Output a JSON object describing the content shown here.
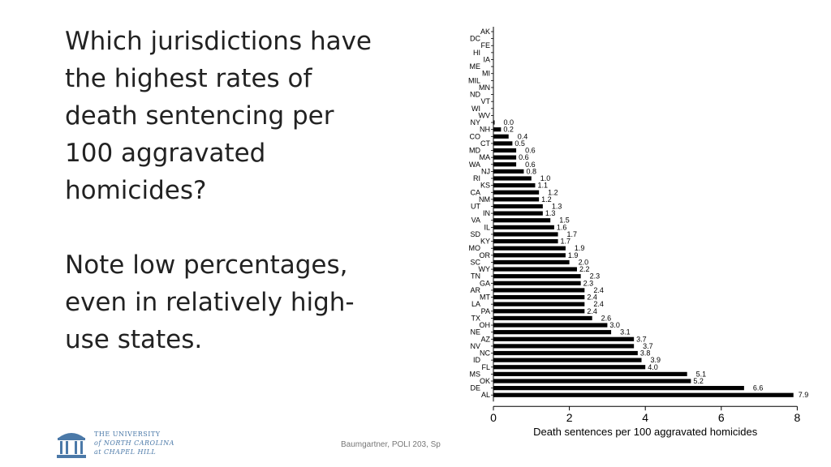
{
  "slide": {
    "question": "Which jurisdictions have the highest rates of death sentencing per 100 aggravated homicides?",
    "note": "Note low percentages, even in relatively high-use states."
  },
  "footer": {
    "text": "Baumgartner, POLI 203, Sp"
  },
  "logo": {
    "line1": "THE UNIVERSITY",
    "line2": "of NORTH CAROLINA",
    "line3": "at CHAPEL HILL"
  },
  "colors": {
    "bar": "#000000",
    "text": "#222222",
    "logo": "#4b79a8"
  },
  "chart_data": {
    "type": "bar",
    "orientation": "horizontal",
    "categories": [
      "AK",
      "DC",
      "FE",
      "HI",
      "IA",
      "ME",
      "MI",
      "MIL",
      "MN",
      "ND",
      "VT",
      "WI",
      "WV",
      "NY",
      "NH",
      "CO",
      "CT",
      "MD",
      "MA",
      "WA",
      "NJ",
      "RI",
      "KS",
      "CA",
      "NM",
      "UT",
      "IN",
      "VA",
      "IL",
      "SD",
      "KY",
      "MO",
      "OR",
      "SC",
      "WY",
      "TN",
      "GA",
      "AR",
      "MT",
      "LA",
      "PA",
      "TX",
      "OH",
      "NE",
      "AZ",
      "NV",
      "NC",
      "ID",
      "FL",
      "MS",
      "OK",
      "DE",
      "AL"
    ],
    "values": [
      null,
      null,
      null,
      null,
      null,
      null,
      null,
      null,
      null,
      null,
      null,
      null,
      null,
      0.0,
      0.2,
      0.4,
      0.5,
      0.6,
      0.6,
      0.6,
      0.8,
      1.0,
      1.1,
      1.2,
      1.2,
      1.3,
      1.3,
      1.5,
      1.6,
      1.7,
      1.7,
      1.9,
      1.9,
      2.0,
      2.2,
      2.3,
      2.3,
      2.4,
      2.4,
      2.4,
      2.4,
      2.6,
      3.0,
      3.1,
      3.7,
      3.7,
      3.8,
      3.9,
      4.0,
      5.1,
      5.2,
      6.6,
      7.9
    ],
    "value_labels": [
      "",
      "",
      "",
      "",
      "",
      "",
      "",
      "",
      "",
      "",
      "",
      "",
      "",
      "0.0",
      "0.2",
      "0.4",
      "0.5",
      "0.6",
      "0.6",
      "0.6",
      "0.8",
      "1.0",
      "1.1",
      "1.2",
      "1.2",
      "1.3",
      "1.3",
      "1.5",
      "1.6",
      "1.7",
      "1.7",
      "1.9",
      "1.9",
      "2.0",
      "2.2",
      "2.3",
      "2.3",
      "2.4",
      "2.4",
      "2.4",
      "2.4",
      "2.6",
      "3.0",
      "3.1",
      "3.7",
      "3.7",
      "3.8",
      "3.9",
      "4.0",
      "5.1",
      "5.2",
      "6.6",
      "7.9"
    ],
    "xlabel": "Death sentences per 100 aggravated homicides",
    "ylabel": "",
    "xlim": [
      0,
      8
    ],
    "xticks": [
      0,
      2,
      4,
      6,
      8
    ],
    "xtick_labels": [
      "0",
      "2",
      "4",
      "6",
      "8"
    ],
    "grid": false
  }
}
